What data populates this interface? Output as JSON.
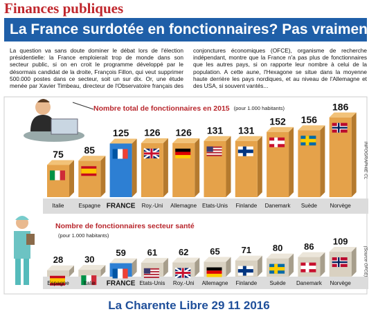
{
  "header": {
    "section": "Finances publiques",
    "title": "La France surdotée en fonctionnaires? Pas vraiment"
  },
  "article": {
    "text": "La question va sans doute dominer le débat lors de l'élection présidentielle: la France emploierait trop de monde dans son secteur public, si on en croit le programme développé par le désormais candidat de la droite, François Fillon, qui veut supprimer 500.000 postes dans ce secteur, soit un sur dix. Or, une étude menée par Xavier Timbeau, directeur de l'Observatoire français des conjonctures économiques (OFCE), organisme de recherche indépendant, montre que la France n'a pas plus de fonctionnaires que les autres pays, si on rapporte leur nombre à celui de la population. A cette aune, l'Hexagone se situe dans la moyenne haute derrière les pays nordiques, et au niveau de l'Allemagne et des USA, si souvent vantés..."
  },
  "chart_data": [
    {
      "type": "bar",
      "title": "Nombre total de fonctionnaires en 2015",
      "subtitle": "(pour 1.000 habitants)",
      "credit": "INFOGRAPHIE CL",
      "categories": [
        "Italie",
        "Espagne",
        "FRANCE",
        "Roy.-Uni",
        "Allemagne",
        "Etats-Unis",
        "Finlande",
        "Danemark",
        "Suède",
        "Norvège"
      ],
      "values": [
        75,
        85,
        125,
        126,
        126,
        131,
        131,
        152,
        156,
        186
      ],
      "colors": [
        "#e5a24a",
        "#e5a24a",
        "#2d7fd3",
        "#e5a24a",
        "#e5a24a",
        "#e5a24a",
        "#e5a24a",
        "#e5a24a",
        "#e5a24a",
        "#e5a24a"
      ]
    },
    {
      "type": "bar",
      "title": "Nombre de fonctionnaires secteur santé",
      "subtitle": "(pour 1.000 habitants)",
      "credit": "(Source OFCE)",
      "categories": [
        "Espagne",
        "Italie",
        "FRANCE",
        "Etats-Unis",
        "Roy.-Uni",
        "Allemagne",
        "Finlande",
        "Suède",
        "Danemark",
        "Norvège"
      ],
      "values": [
        28,
        30,
        59,
        61,
        62,
        65,
        71,
        80,
        86,
        109
      ],
      "colors": [
        "#d9d1c1",
        "#d9d1c1",
        "#2d7fd3",
        "#d9d1c1",
        "#d9d1c1",
        "#d9d1c1",
        "#d9d1c1",
        "#d9d1c1",
        "#d9d1c1",
        "#d9d1c1"
      ]
    }
  ],
  "footer": {
    "text": "La Charente Libre 29 11 2016"
  }
}
